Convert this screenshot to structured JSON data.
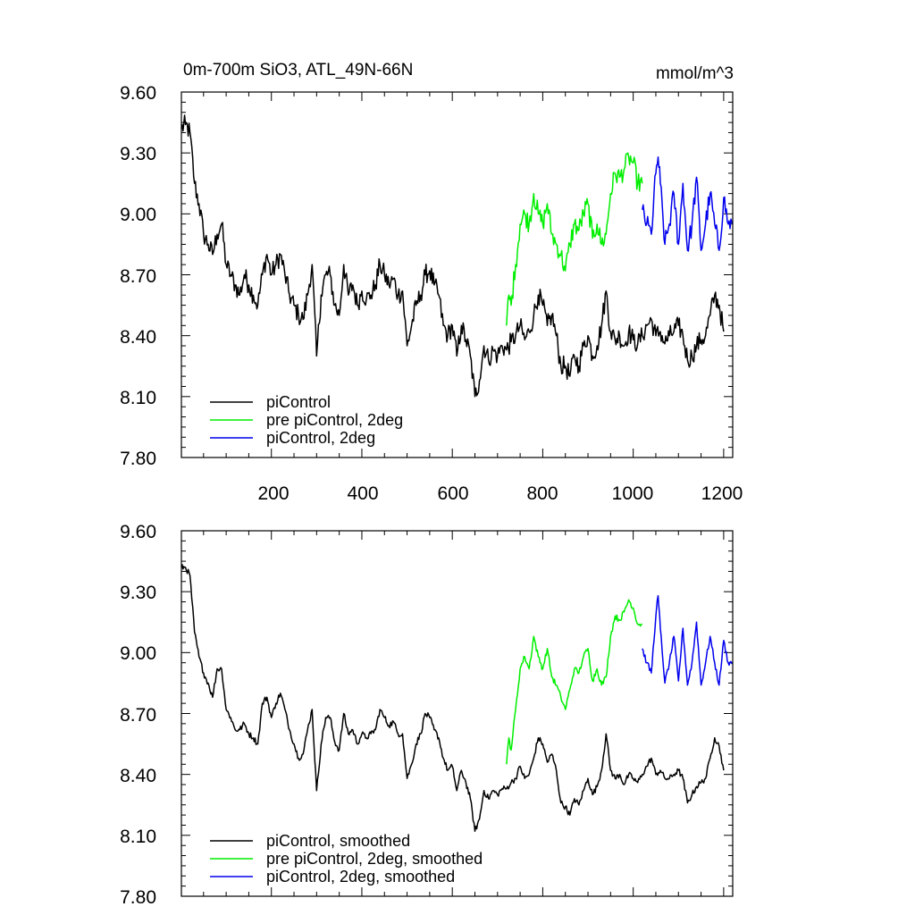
{
  "chart_data": [
    {
      "type": "line",
      "title": "0m-700m SiO3, ATL_49N-66N",
      "units": "mmol/m^3",
      "xlim": [
        1,
        1220
      ],
      "ylim": [
        7.8,
        9.6
      ],
      "xticks": [
        200,
        400,
        600,
        800,
        1000,
        1200
      ],
      "xtick_labels": [
        "200",
        "400",
        "600",
        "800",
        "1000",
        "1200"
      ],
      "yticks": [
        7.8,
        8.1,
        8.4,
        8.7,
        9.0,
        9.3,
        9.6
      ],
      "ytick_labels": [
        "7.80",
        "8.10",
        "8.40",
        "8.70",
        "9.00",
        "9.30",
        "9.60"
      ],
      "legend_position": "bottom-left",
      "series": [
        {
          "name": "piControl",
          "color": "#000000",
          "noise": 0.05,
          "x": [
            1,
            10,
            20,
            30,
            40,
            50,
            60,
            70,
            80,
            90,
            100,
            110,
            120,
            130,
            140,
            150,
            160,
            170,
            180,
            190,
            200,
            210,
            220,
            230,
            240,
            250,
            260,
            270,
            280,
            290,
            300,
            310,
            320,
            330,
            340,
            350,
            360,
            370,
            380,
            390,
            400,
            410,
            420,
            430,
            440,
            450,
            460,
            470,
            480,
            490,
            500,
            510,
            520,
            530,
            540,
            550,
            560,
            570,
            580,
            590,
            600,
            610,
            620,
            630,
            640,
            650,
            660,
            670,
            680,
            690,
            700,
            710,
            720,
            730,
            740,
            750,
            760,
            770,
            780,
            790,
            800,
            810,
            820,
            830,
            840,
            850,
            860,
            870,
            880,
            890,
            900,
            910,
            920,
            930,
            940,
            950,
            960,
            970,
            980,
            990,
            1000,
            1010,
            1020,
            1030,
            1040,
            1050,
            1060,
            1070,
            1080,
            1090,
            1100,
            1110,
            1120,
            1130,
            1140,
            1150,
            1160,
            1170,
            1180,
            1190,
            1200
          ],
          "y": [
            9.42,
            9.44,
            9.4,
            9.15,
            9.05,
            8.9,
            8.85,
            8.8,
            8.9,
            8.95,
            8.75,
            8.7,
            8.65,
            8.6,
            8.7,
            8.65,
            8.6,
            8.55,
            8.7,
            8.8,
            8.7,
            8.75,
            8.8,
            8.7,
            8.6,
            8.55,
            8.5,
            8.48,
            8.6,
            8.75,
            8.3,
            8.6,
            8.7,
            8.7,
            8.55,
            8.5,
            8.75,
            8.6,
            8.65,
            8.55,
            8.62,
            8.58,
            8.6,
            8.65,
            8.75,
            8.7,
            8.65,
            8.68,
            8.6,
            8.62,
            8.35,
            8.45,
            8.55,
            8.6,
            8.7,
            8.72,
            8.65,
            8.6,
            8.45,
            8.4,
            8.45,
            8.3,
            8.45,
            8.38,
            8.3,
            8.1,
            8.18,
            8.35,
            8.28,
            8.33,
            8.3,
            8.35,
            8.33,
            8.37,
            8.4,
            8.45,
            8.38,
            8.42,
            8.5,
            8.6,
            8.55,
            8.45,
            8.5,
            8.4,
            8.25,
            8.25,
            8.2,
            8.3,
            8.25,
            8.35,
            8.4,
            8.3,
            8.35,
            8.45,
            8.62,
            8.42,
            8.38,
            8.4,
            8.35,
            8.42,
            8.38,
            8.36,
            8.4,
            8.45,
            8.48,
            8.4,
            8.42,
            8.36,
            8.4,
            8.42,
            8.45,
            8.4,
            8.28,
            8.3,
            8.35,
            8.38,
            8.4,
            8.5,
            8.6,
            8.55,
            8.42
          ]
        },
        {
          "name": "pre piControl, 2deg",
          "color": "#00ee00",
          "noise": 0.05,
          "x": [
            720,
            725,
            730,
            740,
            750,
            760,
            770,
            780,
            790,
            800,
            810,
            820,
            830,
            840,
            850,
            860,
            870,
            880,
            890,
            900,
            910,
            920,
            930,
            940,
            950,
            960,
            970,
            980,
            990,
            1000,
            1010,
            1020
          ],
          "y": [
            8.45,
            8.6,
            8.55,
            8.75,
            8.95,
            9.0,
            8.95,
            9.1,
            9.0,
            8.95,
            9.05,
            8.9,
            8.85,
            8.8,
            8.72,
            8.85,
            8.95,
            8.92,
            9.0,
            9.05,
            8.88,
            8.95,
            8.85,
            8.9,
            9.1,
            9.2,
            9.18,
            9.22,
            9.28,
            9.25,
            9.15,
            9.15
          ]
        },
        {
          "name": "piControl, 2deg",
          "color": "#0000ee",
          "noise": 0.05,
          "x": [
            1020,
            1030,
            1040,
            1050,
            1055,
            1060,
            1070,
            1080,
            1090,
            1100,
            1110,
            1120,
            1130,
            1140,
            1150,
            1160,
            1170,
            1180,
            1190,
            1200,
            1210,
            1220
          ],
          "y": [
            9.02,
            8.95,
            8.9,
            9.2,
            9.28,
            9.15,
            8.85,
            8.95,
            9.1,
            8.85,
            9.15,
            8.82,
            8.95,
            9.18,
            8.82,
            8.95,
            9.1,
            8.95,
            8.82,
            9.08,
            8.95,
            8.95
          ]
        }
      ]
    },
    {
      "type": "line",
      "xlim": [
        1,
        1220
      ],
      "ylim": [
        7.8,
        9.6
      ],
      "xticks": [
        200,
        400,
        600,
        800,
        1000,
        1200
      ],
      "yticks": [
        7.8,
        8.1,
        8.4,
        8.7,
        9.0,
        9.3,
        9.6
      ],
      "ytick_labels": [
        "7.80",
        "8.10",
        "8.40",
        "8.70",
        "9.00",
        "9.30",
        "9.60"
      ],
      "legend_position": "bottom-left",
      "series": [
        {
          "name": "piControl, smoothed",
          "color": "#000000",
          "noise": 0.015,
          "x": [
            1,
            10,
            20,
            30,
            40,
            50,
            60,
            70,
            80,
            90,
            100,
            110,
            120,
            130,
            140,
            150,
            160,
            170,
            180,
            190,
            200,
            210,
            220,
            230,
            240,
            250,
            260,
            270,
            280,
            290,
            300,
            310,
            320,
            330,
            340,
            350,
            360,
            370,
            380,
            390,
            400,
            410,
            420,
            430,
            440,
            450,
            460,
            470,
            480,
            490,
            500,
            510,
            520,
            530,
            540,
            550,
            560,
            570,
            580,
            590,
            600,
            610,
            620,
            630,
            640,
            650,
            660,
            670,
            680,
            690,
            700,
            710,
            720,
            730,
            740,
            750,
            760,
            770,
            780,
            790,
            800,
            810,
            820,
            830,
            840,
            850,
            860,
            870,
            880,
            890,
            900,
            910,
            920,
            930,
            940,
            950,
            960,
            970,
            980,
            990,
            1000,
            1010,
            1020,
            1030,
            1040,
            1050,
            1060,
            1070,
            1080,
            1090,
            1100,
            1110,
            1120,
            1130,
            1140,
            1150,
            1160,
            1170,
            1180,
            1190,
            1200
          ],
          "y": [
            9.42,
            9.42,
            9.38,
            9.1,
            8.98,
            8.9,
            8.85,
            8.78,
            8.92,
            8.92,
            8.72,
            8.68,
            8.62,
            8.62,
            8.65,
            8.6,
            8.58,
            8.55,
            8.75,
            8.78,
            8.68,
            8.75,
            8.8,
            8.72,
            8.62,
            8.55,
            8.48,
            8.5,
            8.62,
            8.72,
            8.32,
            8.55,
            8.68,
            8.68,
            8.56,
            8.52,
            8.7,
            8.6,
            8.62,
            8.55,
            8.6,
            8.58,
            8.6,
            8.62,
            8.72,
            8.68,
            8.64,
            8.66,
            8.6,
            8.6,
            8.38,
            8.45,
            8.55,
            8.6,
            8.7,
            8.68,
            8.62,
            8.58,
            8.48,
            8.42,
            8.44,
            8.32,
            8.42,
            8.36,
            8.28,
            8.12,
            8.18,
            8.32,
            8.28,
            8.32,
            8.3,
            8.33,
            8.33,
            8.36,
            8.38,
            8.44,
            8.38,
            8.4,
            8.48,
            8.58,
            8.55,
            8.46,
            8.5,
            8.42,
            8.26,
            8.24,
            8.2,
            8.28,
            8.25,
            8.32,
            8.38,
            8.3,
            8.34,
            8.42,
            8.6,
            8.42,
            8.38,
            8.4,
            8.35,
            8.4,
            8.38,
            8.36,
            8.4,
            8.44,
            8.48,
            8.4,
            8.42,
            8.38,
            8.38,
            8.4,
            8.42,
            8.38,
            8.26,
            8.3,
            8.34,
            8.36,
            8.38,
            8.48,
            8.58,
            8.54,
            8.42
          ]
        },
        {
          "name": "pre piControl, 2deg, smoothed",
          "color": "#00ee00",
          "noise": 0.015,
          "x": [
            720,
            725,
            730,
            740,
            750,
            760,
            770,
            780,
            790,
            800,
            810,
            820,
            830,
            840,
            850,
            860,
            870,
            880,
            890,
            900,
            910,
            920,
            930,
            940,
            950,
            960,
            970,
            980,
            990,
            1000,
            1010,
            1020
          ],
          "y": [
            8.45,
            8.58,
            8.52,
            8.72,
            8.92,
            8.98,
            8.92,
            9.08,
            8.98,
            8.92,
            9.02,
            8.88,
            8.84,
            8.78,
            8.72,
            8.82,
            8.92,
            8.9,
            8.98,
            9.02,
            8.86,
            8.92,
            8.84,
            8.88,
            9.08,
            9.18,
            9.16,
            9.2,
            9.26,
            9.22,
            9.14,
            9.14
          ]
        },
        {
          "name": "piControl, 2deg, smoothed",
          "color": "#0000ee",
          "noise": 0.015,
          "x": [
            1020,
            1030,
            1040,
            1050,
            1055,
            1060,
            1070,
            1080,
            1090,
            1100,
            1110,
            1120,
            1130,
            1140,
            1150,
            1160,
            1170,
            1180,
            1190,
            1200,
            1210,
            1220
          ],
          "y": [
            9.02,
            8.95,
            8.9,
            9.18,
            9.28,
            9.12,
            8.85,
            8.95,
            9.08,
            8.86,
            9.12,
            8.84,
            8.95,
            9.15,
            8.84,
            8.95,
            9.08,
            8.95,
            8.84,
            9.06,
            8.95,
            8.95
          ]
        }
      ]
    }
  ]
}
